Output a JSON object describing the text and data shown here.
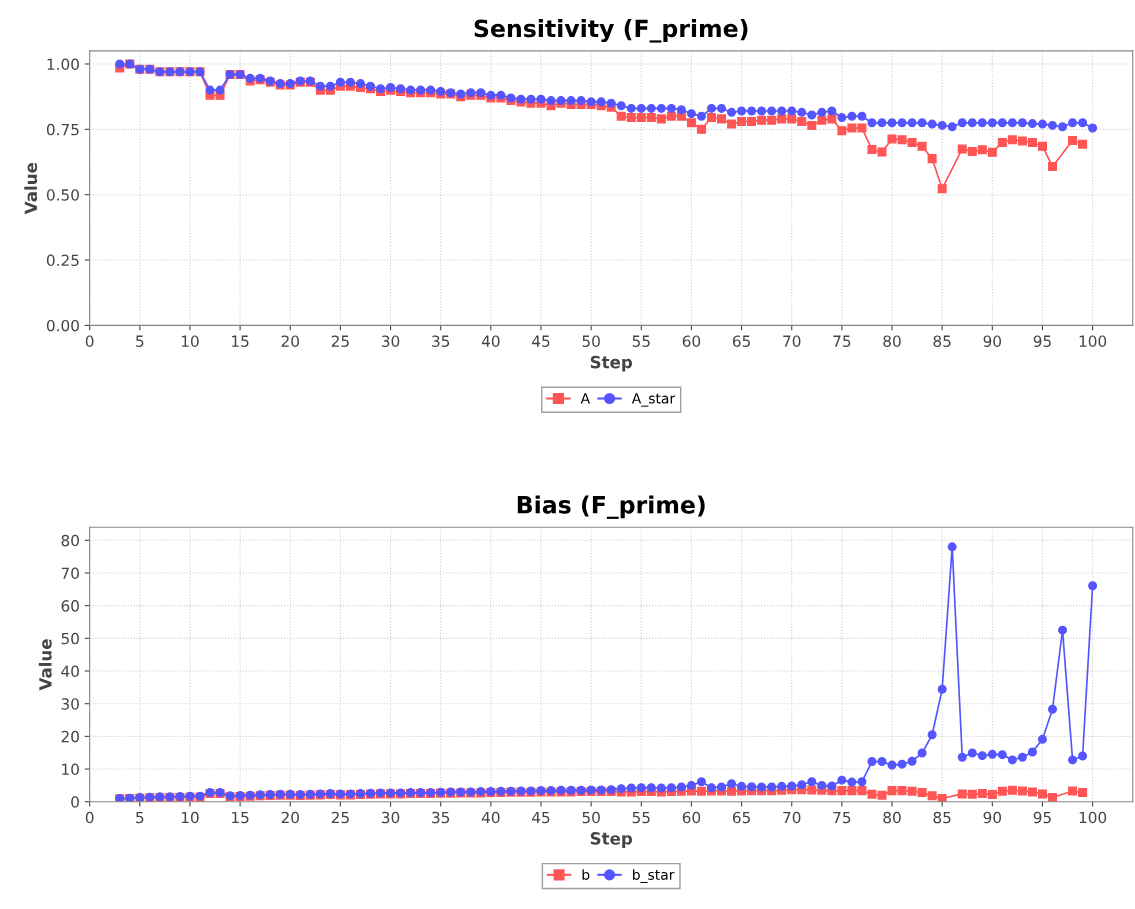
{
  "chart_data": [
    {
      "type": "line",
      "title": "Sensitivity (F_prime)",
      "xlabel": "Step",
      "ylabel": "Value",
      "xlim": [
        0,
        104
      ],
      "xticks": [
        0,
        5,
        10,
        15,
        20,
        25,
        30,
        35,
        40,
        45,
        50,
        55,
        60,
        65,
        70,
        75,
        80,
        85,
        90,
        95,
        100
      ],
      "ylim": [
        0,
        1.05
      ],
      "yticks": [
        {
          "value": 0,
          "label": "0.00"
        },
        {
          "value": 0.25,
          "label": "0.25"
        },
        {
          "value": 0.5,
          "label": "0.50"
        },
        {
          "value": 0.75,
          "label": "0.75"
        },
        {
          "value": 1.0,
          "label": "1.00"
        }
      ],
      "grid": true,
      "legend": "bottom",
      "line_style": "solid",
      "series": [
        {
          "name": "A",
          "color": "#ff5555",
          "marker": "square",
          "x": [
            3,
            4,
            5,
            6,
            7,
            8,
            9,
            10,
            11,
            12,
            13,
            14,
            15,
            16,
            17,
            18,
            19,
            20,
            21,
            22,
            23,
            24,
            25,
            26,
            27,
            28,
            29,
            30,
            31,
            32,
            33,
            34,
            35,
            36,
            37,
            38,
            39,
            40,
            41,
            42,
            43,
            44,
            45,
            46,
            47,
            48,
            49,
            50,
            51,
            52,
            53,
            54,
            55,
            56,
            57,
            58,
            59,
            60,
            61,
            62,
            63,
            64,
            65,
            66,
            67,
            68,
            69,
            70,
            71,
            72,
            73,
            74,
            75,
            76,
            77,
            78,
            79,
            80,
            81,
            82,
            83,
            84,
            85,
            87,
            88,
            89,
            90,
            91,
            92,
            93,
            94,
            95,
            96,
            98,
            99
          ],
          "values": [
            0.985,
            1.0,
            0.98,
            0.98,
            0.97,
            0.97,
            0.97,
            0.97,
            0.97,
            0.88,
            0.88,
            0.96,
            0.96,
            0.935,
            0.94,
            0.93,
            0.92,
            0.92,
            0.93,
            0.93,
            0.9,
            0.9,
            0.915,
            0.915,
            0.91,
            0.905,
            0.895,
            0.9,
            0.895,
            0.89,
            0.89,
            0.89,
            0.885,
            0.885,
            0.875,
            0.88,
            0.88,
            0.87,
            0.87,
            0.86,
            0.855,
            0.85,
            0.85,
            0.84,
            0.85,
            0.845,
            0.845,
            0.845,
            0.84,
            0.835,
            0.8,
            0.795,
            0.795,
            0.795,
            0.79,
            0.8,
            0.8,
            0.775,
            0.75,
            0.795,
            0.79,
            0.77,
            0.78,
            0.78,
            0.785,
            0.785,
            0.79,
            0.79,
            0.78,
            0.765,
            0.785,
            0.79,
            0.745,
            0.755,
            0.755,
            0.673,
            0.663,
            0.713,
            0.71,
            0.7,
            0.685,
            0.638,
            0.523,
            0.675,
            0.665,
            0.672,
            0.662,
            0.7,
            0.71,
            0.705,
            0.7,
            0.685,
            0.608,
            0.707,
            0.693
          ]
        },
        {
          "name": "A_star",
          "color": "#5555ff",
          "marker": "circle",
          "x": [
            3,
            4,
            5,
            6,
            7,
            8,
            9,
            10,
            11,
            12,
            13,
            14,
            15,
            16,
            17,
            18,
            19,
            20,
            21,
            22,
            23,
            24,
            25,
            26,
            27,
            28,
            29,
            30,
            31,
            32,
            33,
            34,
            35,
            36,
            37,
            38,
            39,
            40,
            41,
            42,
            43,
            44,
            45,
            46,
            47,
            48,
            49,
            50,
            51,
            52,
            53,
            54,
            55,
            56,
            57,
            58,
            59,
            60,
            61,
            62,
            63,
            64,
            65,
            66,
            67,
            68,
            69,
            70,
            71,
            72,
            73,
            74,
            75,
            76,
            77,
            78,
            79,
            80,
            81,
            82,
            83,
            84,
            85,
            86,
            87,
            88,
            89,
            90,
            91,
            92,
            93,
            94,
            95,
            96,
            97,
            98,
            99,
            100
          ],
          "values": [
            1.0,
            1.0,
            0.98,
            0.98,
            0.97,
            0.97,
            0.97,
            0.97,
            0.97,
            0.9,
            0.9,
            0.96,
            0.96,
            0.945,
            0.945,
            0.935,
            0.925,
            0.925,
            0.935,
            0.935,
            0.915,
            0.915,
            0.93,
            0.93,
            0.925,
            0.915,
            0.905,
            0.91,
            0.905,
            0.9,
            0.9,
            0.9,
            0.895,
            0.89,
            0.885,
            0.89,
            0.89,
            0.88,
            0.88,
            0.87,
            0.865,
            0.865,
            0.865,
            0.86,
            0.86,
            0.86,
            0.86,
            0.855,
            0.855,
            0.85,
            0.84,
            0.83,
            0.83,
            0.83,
            0.83,
            0.83,
            0.825,
            0.81,
            0.8,
            0.83,
            0.83,
            0.815,
            0.82,
            0.82,
            0.82,
            0.82,
            0.82,
            0.82,
            0.815,
            0.805,
            0.815,
            0.82,
            0.795,
            0.8,
            0.8,
            0.775,
            0.775,
            0.775,
            0.775,
            0.775,
            0.775,
            0.77,
            0.765,
            0.76,
            0.775,
            0.775,
            0.775,
            0.775,
            0.775,
            0.775,
            0.775,
            0.772,
            0.77,
            0.765,
            0.76,
            0.775,
            0.775,
            0.755
          ]
        }
      ]
    },
    {
      "type": "line",
      "title": "Bias (F_prime)",
      "xlabel": "Step",
      "ylabel": "Value",
      "xlim": [
        0,
        104
      ],
      "xticks": [
        0,
        5,
        10,
        15,
        20,
        25,
        30,
        35,
        40,
        45,
        50,
        55,
        60,
        65,
        70,
        75,
        80,
        85,
        90,
        95,
        100
      ],
      "ylim": [
        0,
        84
      ],
      "yticks": [
        0,
        10,
        20,
        30,
        40,
        50,
        60,
        70,
        80
      ],
      "grid": true,
      "legend": "bottom",
      "line_style": "solid",
      "series": [
        {
          "name": "b",
          "color": "#ff5555",
          "marker": "square",
          "x": [
            3,
            4,
            5,
            6,
            7,
            8,
            9,
            10,
            11,
            12,
            13,
            14,
            15,
            16,
            17,
            18,
            19,
            20,
            21,
            22,
            23,
            24,
            25,
            26,
            27,
            28,
            29,
            30,
            31,
            32,
            33,
            34,
            35,
            36,
            37,
            38,
            39,
            40,
            41,
            42,
            43,
            44,
            45,
            46,
            47,
            48,
            49,
            50,
            51,
            52,
            53,
            54,
            55,
            56,
            57,
            58,
            59,
            60,
            61,
            62,
            63,
            64,
            65,
            66,
            67,
            68,
            69,
            70,
            71,
            72,
            73,
            74,
            75,
            76,
            77,
            78,
            79,
            80,
            81,
            82,
            83,
            84,
            85,
            87,
            88,
            89,
            90,
            91,
            92,
            93,
            94,
            95,
            96,
            98,
            99
          ],
          "values": [
            0.9,
            1.0,
            1.1,
            1.2,
            1.2,
            1.3,
            1.3,
            1.4,
            1.4,
            2.5,
            2.5,
            1.5,
            1.6,
            1.7,
            1.8,
            1.9,
            2.0,
            2.0,
            1.9,
            2.0,
            2.1,
            2.2,
            2.1,
            2.1,
            2.2,
            2.3,
            2.4,
            2.4,
            2.4,
            2.5,
            2.5,
            2.5,
            2.6,
            2.6,
            2.7,
            2.7,
            2.7,
            2.8,
            2.8,
            2.9,
            2.9,
            2.9,
            3.0,
            3.0,
            3.0,
            3.0,
            3.1,
            3.1,
            3.1,
            3.1,
            3.0,
            3.0,
            3.1,
            3.1,
            3.0,
            3.1,
            3.2,
            3.3,
            3.2,
            3.3,
            3.3,
            3.2,
            3.3,
            3.4,
            3.4,
            3.4,
            3.5,
            3.7,
            3.7,
            3.6,
            3.5,
            3.4,
            3.4,
            3.4,
            3.4,
            2.3,
            2.0,
            3.4,
            3.4,
            3.2,
            2.8,
            1.8,
            1.0,
            2.4,
            2.3,
            2.5,
            2.2,
            3.2,
            3.5,
            3.3,
            3.0,
            2.4,
            1.3,
            3.3,
            2.8
          ]
        },
        {
          "name": "b_star",
          "color": "#5555ff",
          "marker": "circle",
          "x": [
            3,
            4,
            5,
            6,
            7,
            8,
            9,
            10,
            11,
            12,
            13,
            14,
            15,
            16,
            17,
            18,
            19,
            20,
            21,
            22,
            23,
            24,
            25,
            26,
            27,
            28,
            29,
            30,
            31,
            32,
            33,
            34,
            35,
            36,
            37,
            38,
            39,
            40,
            41,
            42,
            43,
            44,
            45,
            46,
            47,
            48,
            49,
            50,
            51,
            52,
            53,
            54,
            55,
            56,
            57,
            58,
            59,
            60,
            61,
            62,
            63,
            64,
            65,
            66,
            67,
            68,
            69,
            70,
            71,
            72,
            73,
            74,
            75,
            76,
            77,
            78,
            79,
            80,
            81,
            82,
            83,
            84,
            85,
            86,
            87,
            88,
            89,
            90,
            91,
            92,
            93,
            94,
            95,
            96,
            97,
            98,
            99,
            100
          ],
          "values": [
            1.0,
            1.1,
            1.3,
            1.4,
            1.5,
            1.5,
            1.6,
            1.7,
            1.7,
            2.8,
            2.8,
            1.8,
            1.9,
            2.0,
            2.1,
            2.2,
            2.3,
            2.3,
            2.2,
            2.3,
            2.4,
            2.5,
            2.4,
            2.4,
            2.5,
            2.6,
            2.7,
            2.7,
            2.7,
            2.8,
            2.8,
            2.8,
            2.9,
            3.0,
            3.0,
            3.0,
            3.1,
            3.1,
            3.2,
            3.2,
            3.3,
            3.3,
            3.4,
            3.4,
            3.5,
            3.5,
            3.5,
            3.6,
            3.6,
            3.7,
            4.0,
            4.2,
            4.3,
            4.3,
            4.2,
            4.3,
            4.5,
            5.0,
            6.1,
            4.3,
            4.5,
            5.5,
            4.7,
            4.6,
            4.5,
            4.5,
            4.7,
            4.8,
            5.2,
            6.1,
            5.0,
            4.8,
            6.6,
            6.0,
            6.1,
            12.3,
            12.3,
            11.2,
            11.5,
            12.4,
            14.9,
            20.5,
            34.4,
            78.0,
            13.6,
            14.9,
            14.1,
            14.5,
            14.4,
            12.8,
            13.6,
            15.2,
            19.1,
            28.3,
            52.5,
            12.8,
            14.0,
            66.1
          ]
        }
      ]
    }
  ]
}
